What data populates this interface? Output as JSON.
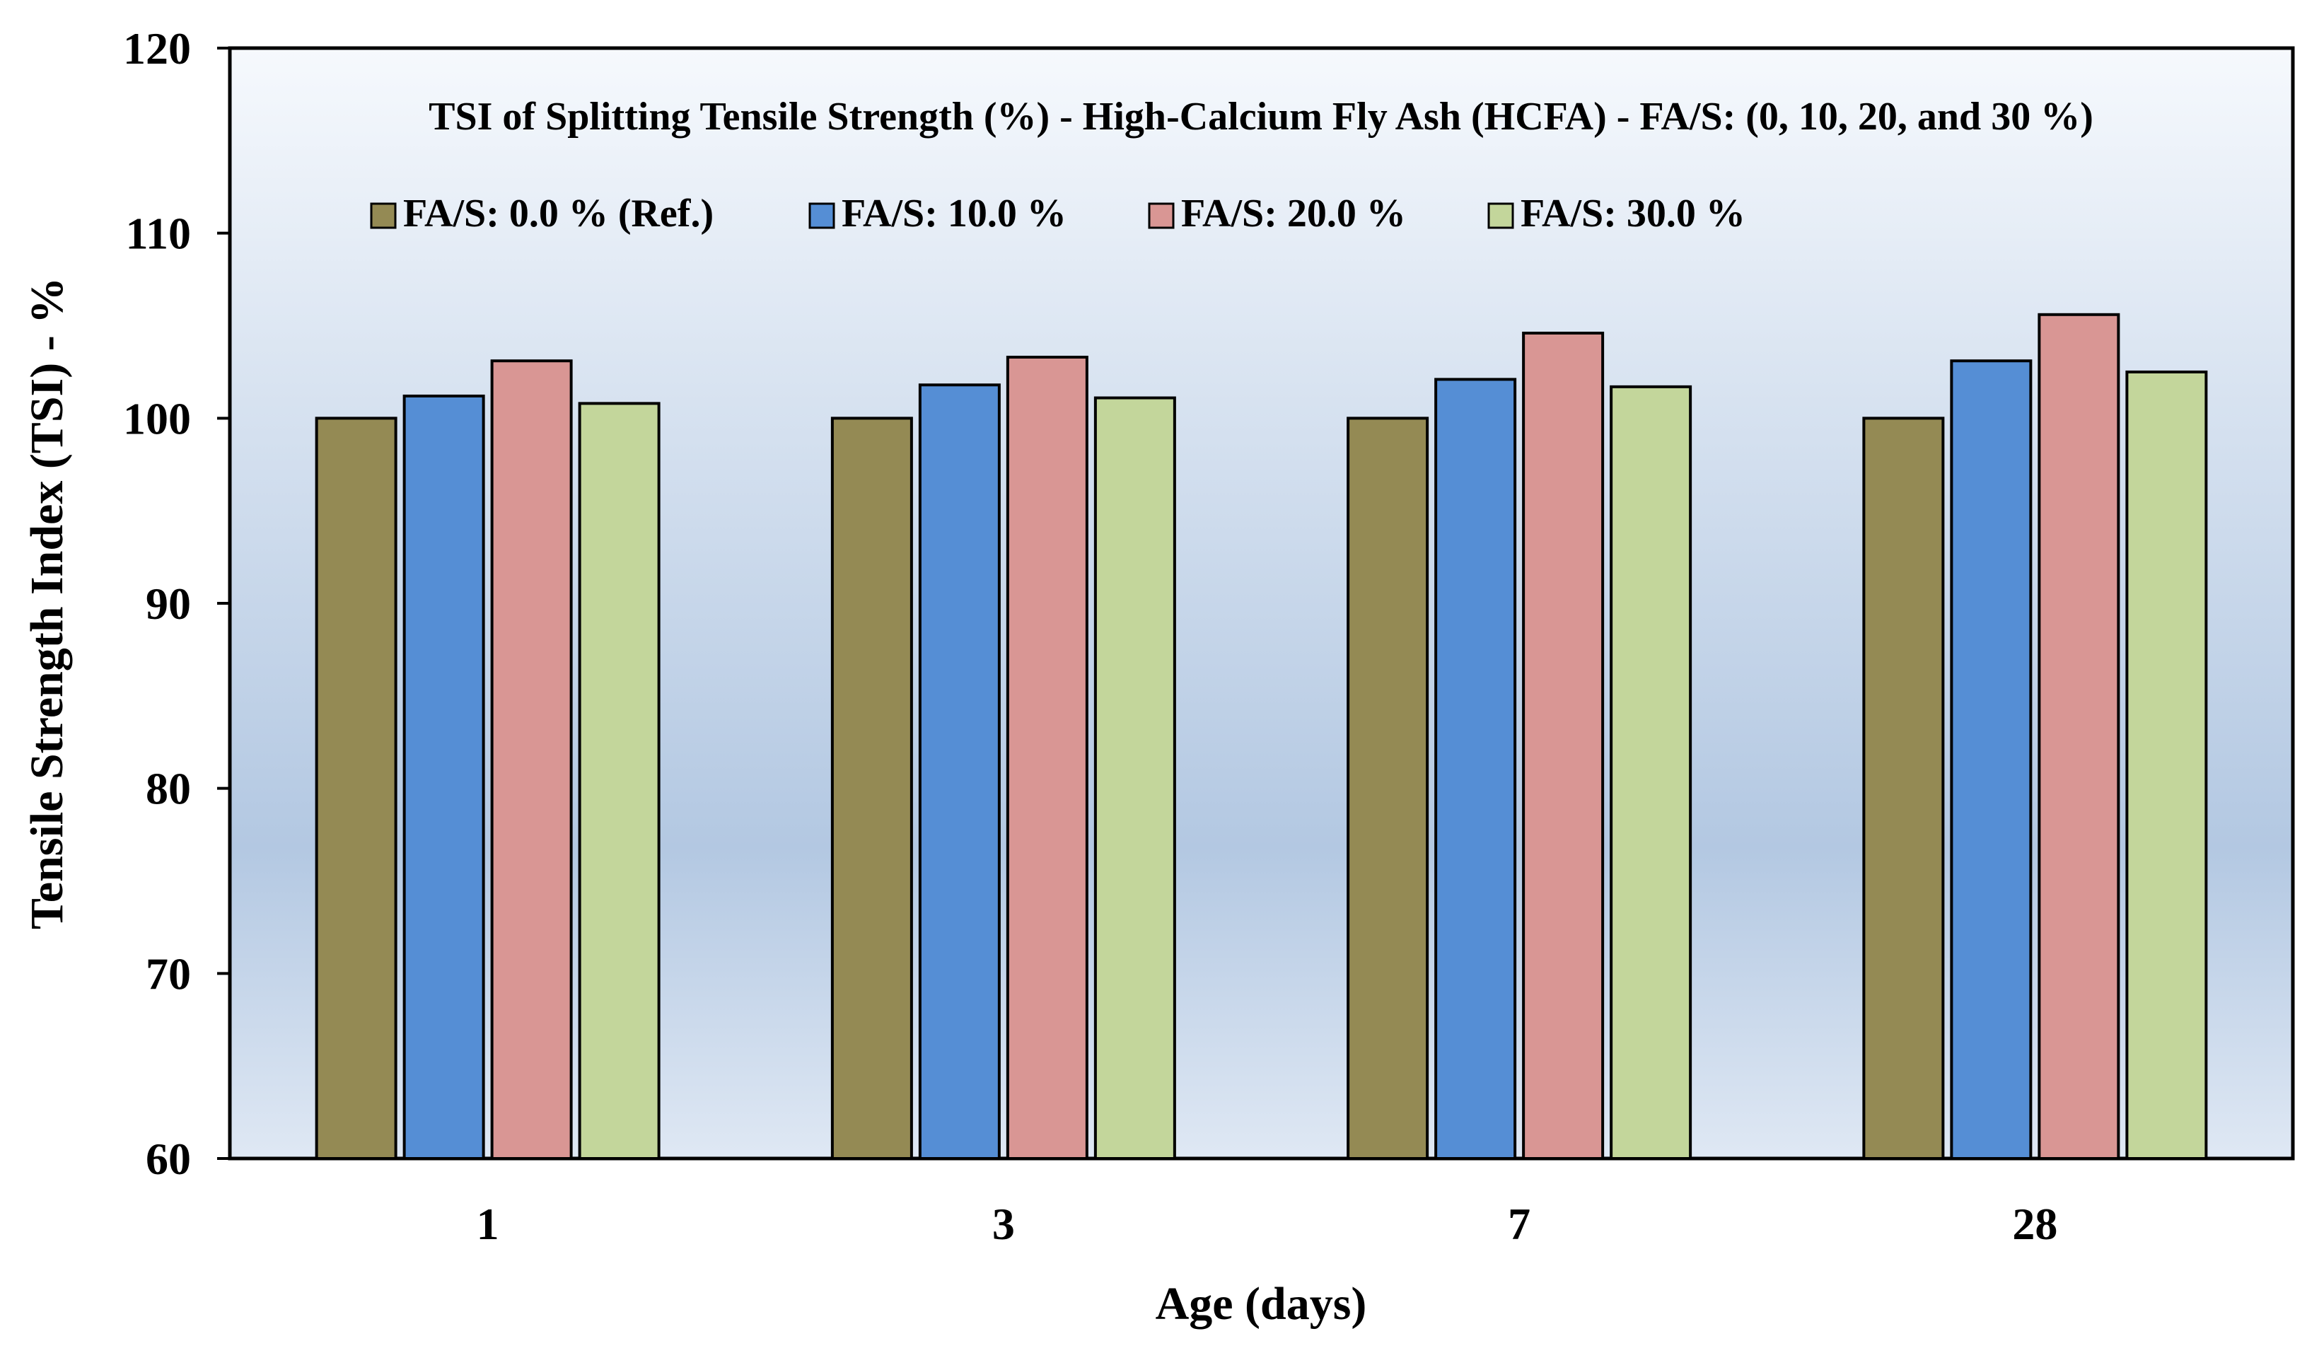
{
  "chart_data": {
    "type": "bar",
    "title": "TSI of Splitting Tensile Strength (%)  - High-Calcium Fly Ash (HCFA) - FA/S: (0, 10, 20, and 30 %)",
    "xlabel": "Age (days)",
    "ylabel": "Tensile Strength Index (TSI) - %",
    "categories": [
      "1",
      "3",
      "7",
      "28"
    ],
    "ylim": [
      60,
      120
    ],
    "yticks": [
      "60",
      "70",
      "80",
      "90",
      "100",
      "110",
      "120"
    ],
    "legend_position": "top",
    "grid": false,
    "series": [
      {
        "name": "FA/S: 0.0 % (Ref.)",
        "color": "#948A54",
        "values": [
          100.0,
          100.0,
          100.0,
          100.0
        ]
      },
      {
        "name": "FA/S: 10.0 %",
        "color": "#558ED5",
        "values": [
          101.2,
          101.8,
          102.1,
          103.1
        ]
      },
      {
        "name": "FA/S: 20.0 %",
        "color": "#D99694",
        "values": [
          103.1,
          103.3,
          104.6,
          105.6
        ]
      },
      {
        "name": "FA/S: 30.0 %",
        "color": "#C3D69B",
        "values": [
          100.8,
          101.1,
          101.7,
          102.5
        ]
      }
    ]
  }
}
